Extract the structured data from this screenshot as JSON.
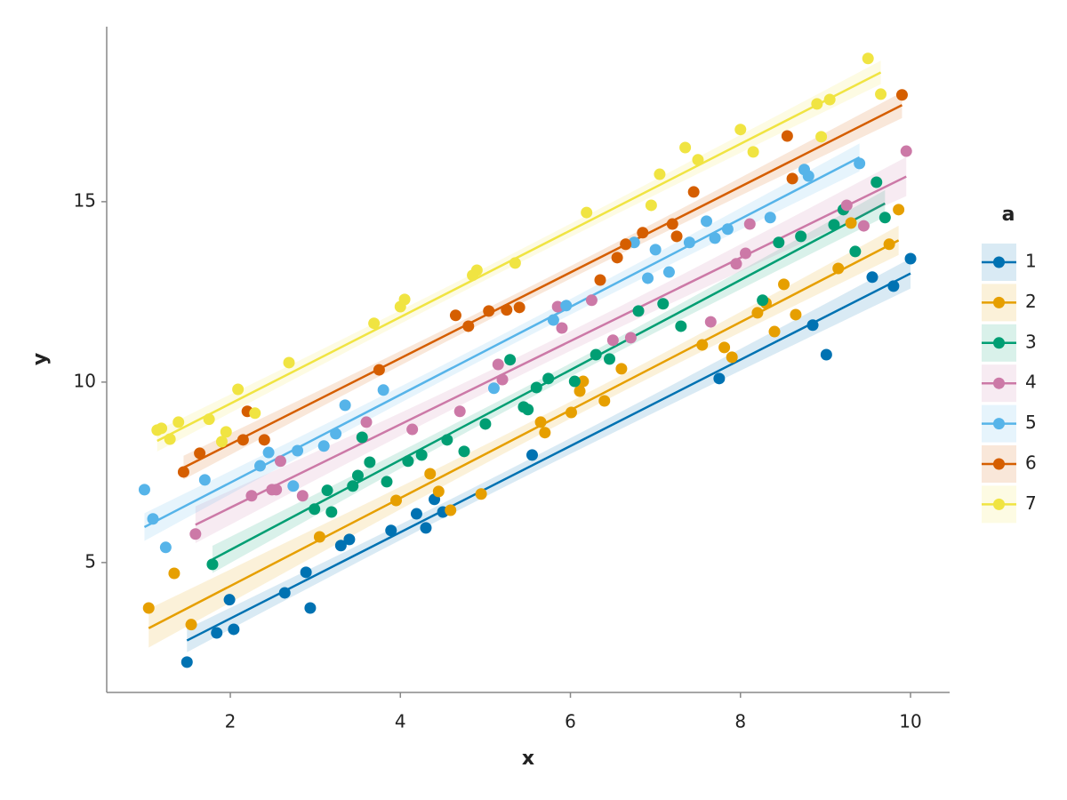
{
  "chart_data": {
    "type": "scatter",
    "x_label": "x",
    "y_label": "y",
    "legend_title": "a",
    "legend": "right",
    "xlim": [
      0.546,
      10.46
    ],
    "ylim": [
      1.4,
      19.85
    ],
    "xticks": [
      2,
      4,
      6,
      8,
      10
    ],
    "yticks": [
      5,
      10,
      15
    ],
    "grid": false,
    "series": [
      {
        "name": "1",
        "color": "#0072b2",
        "x": [
          1.49,
          1.84,
          2.04,
          1.99,
          2.64,
          2.89,
          2.94,
          3.3,
          3.4,
          3.89,
          4.19,
          4.3,
          4.4,
          4.5,
          5.55,
          7.75,
          8.85,
          9.01,
          9.55,
          9.8,
          10.0
        ],
        "values": [
          2.24,
          3.05,
          3.15,
          3.97,
          4.16,
          4.73,
          3.74,
          5.47,
          5.64,
          5.89,
          6.35,
          5.96,
          6.75,
          6.4,
          7.98,
          10.1,
          11.58,
          10.76,
          12.91,
          12.66,
          13.42
        ]
      },
      {
        "name": "2",
        "color": "#e69f00",
        "x": [
          1.04,
          1.34,
          1.54,
          3.05,
          3.95,
          4.35,
          4.45,
          4.59,
          4.95,
          5.65,
          5.7,
          6.01,
          6.11,
          6.15,
          6.4,
          6.6,
          7.55,
          7.81,
          7.9,
          8.2,
          8.3,
          8.4,
          8.51,
          8.65,
          9.15,
          9.3,
          9.75,
          9.86
        ],
        "values": [
          3.74,
          4.7,
          3.28,
          5.71,
          6.72,
          7.46,
          6.97,
          6.45,
          6.9,
          8.89,
          8.6,
          9.16,
          9.75,
          10.02,
          9.48,
          10.37,
          11.03,
          10.96,
          10.69,
          11.92,
          12.19,
          11.4,
          12.71,
          11.87,
          13.15,
          14.41,
          13.82,
          14.78
        ]
      },
      {
        "name": "3",
        "color": "#009e73",
        "x": [
          1.79,
          2.99,
          3.14,
          3.19,
          3.44,
          3.5,
          3.55,
          3.64,
          3.84,
          4.09,
          4.25,
          4.55,
          4.75,
          5.0,
          5.29,
          5.45,
          5.5,
          5.6,
          5.74,
          6.05,
          6.3,
          6.46,
          6.8,
          7.09,
          7.3,
          8.26,
          8.45,
          8.71,
          9.1,
          9.21,
          9.35,
          9.6,
          9.7
        ],
        "values": [
          4.95,
          6.48,
          7.0,
          6.4,
          7.12,
          7.41,
          8.47,
          7.78,
          7.24,
          7.81,
          7.98,
          8.4,
          8.08,
          8.84,
          10.62,
          9.31,
          9.24,
          9.85,
          10.1,
          10.02,
          10.76,
          10.64,
          11.97,
          12.17,
          11.55,
          12.27,
          13.87,
          14.04,
          14.36,
          14.78,
          13.62,
          15.54,
          14.56
        ]
      },
      {
        "name": "4",
        "color": "#cc79a7",
        "x": [
          1.59,
          2.25,
          2.49,
          2.54,
          2.59,
          2.85,
          3.6,
          4.14,
          4.7,
          5.15,
          5.2,
          5.85,
          5.9,
          6.25,
          6.5,
          6.71,
          7.65,
          7.95,
          8.06,
          8.11,
          9.25,
          9.45,
          9.95
        ],
        "values": [
          5.79,
          6.85,
          7.02,
          7.02,
          7.81,
          6.85,
          8.89,
          8.69,
          9.19,
          10.49,
          10.07,
          12.09,
          11.5,
          12.27,
          11.16,
          11.23,
          11.67,
          13.28,
          13.57,
          14.38,
          14.9,
          14.33,
          16.4
        ]
      },
      {
        "name": "5",
        "color": "#56b4e9",
        "x": [
          0.99,
          1.09,
          1.24,
          1.7,
          2.35,
          2.45,
          2.79,
          2.74,
          3.1,
          3.24,
          3.35,
          3.8,
          5.1,
          5.8,
          5.95,
          6.75,
          6.91,
          7.0,
          7.16,
          7.4,
          7.6,
          7.7,
          7.85,
          8.35,
          8.75,
          8.8,
          9.4
        ],
        "values": [
          7.02,
          6.21,
          5.42,
          7.29,
          7.68,
          8.05,
          8.1,
          7.12,
          8.23,
          8.57,
          9.36,
          9.78,
          9.83,
          11.72,
          12.12,
          13.87,
          12.88,
          13.67,
          13.05,
          13.87,
          14.46,
          13.99,
          14.24,
          14.56,
          15.89,
          15.71,
          16.06
        ]
      },
      {
        "name": "6",
        "color": "#d55e00",
        "x": [
          1.45,
          1.64,
          2.15,
          2.2,
          2.4,
          3.75,
          4.65,
          4.8,
          5.04,
          5.25,
          5.4,
          6.35,
          6.55,
          6.65,
          6.85,
          7.2,
          7.25,
          7.45,
          8.55,
          8.61,
          9.9
        ],
        "values": [
          7.51,
          8.03,
          8.4,
          9.19,
          8.4,
          10.34,
          11.85,
          11.55,
          11.97,
          12.0,
          12.07,
          12.83,
          13.45,
          13.82,
          14.14,
          14.38,
          14.04,
          15.27,
          16.82,
          15.64,
          17.96
        ]
      },
      {
        "name": "7",
        "color": "#f0e442",
        "x": [
          1.14,
          1.19,
          1.29,
          1.39,
          1.75,
          1.9,
          1.95,
          2.09,
          2.29,
          2.69,
          3.69,
          4.0,
          4.05,
          4.85,
          4.9,
          5.35,
          6.19,
          6.95,
          7.05,
          7.35,
          7.5,
          8.0,
          8.15,
          8.9,
          8.95,
          9.05,
          9.5,
          9.65
        ],
        "values": [
          8.67,
          8.72,
          8.42,
          8.89,
          8.97,
          8.35,
          8.62,
          9.8,
          9.14,
          10.54,
          11.63,
          12.09,
          12.29,
          12.96,
          13.1,
          13.3,
          14.7,
          14.9,
          15.76,
          16.5,
          16.16,
          17.0,
          16.38,
          17.71,
          16.8,
          17.83,
          18.97,
          17.98
        ]
      }
    ]
  }
}
